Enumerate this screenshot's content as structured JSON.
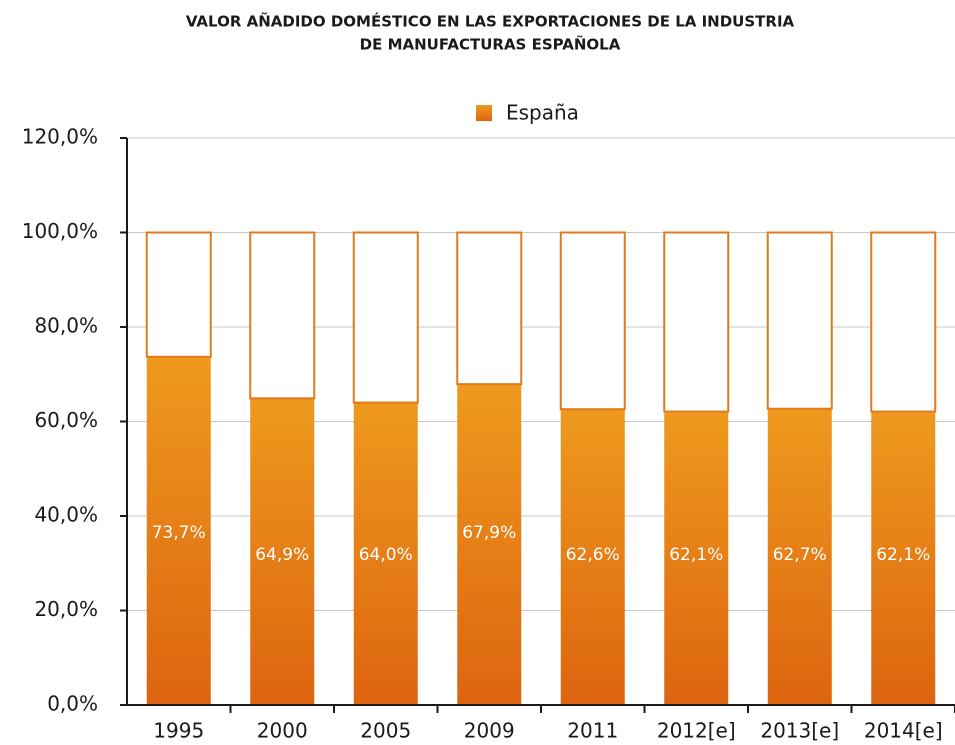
{
  "chart_data": {
    "type": "stacked_bar",
    "title": [
      "VALOR AÑADIDO DOMÉSTICO EN LAS EXPORTACIONES DE LA INDUSTRIA",
      "DE MANUFACTURAS ESPAÑOLA"
    ],
    "categories": [
      "1995",
      "2000",
      "2005",
      "2009",
      "2011",
      "2012[e]",
      "2013[e]",
      "2014[e]"
    ],
    "series": [
      {
        "name": "España",
        "color": "#ee9a1e",
        "values": [
          73.7,
          64.9,
          64.0,
          67.9,
          62.6,
          62.1,
          62.7,
          62.1
        ],
        "value_labels": [
          "73,7%",
          "64,9%",
          "64,0%",
          "67,9%",
          "62,6%",
          "62,1%",
          "62,7%",
          "62,1%"
        ]
      },
      {
        "color": "#ffffff",
        "values": [
          26.3,
          35.1,
          36.0,
          32.1,
          37.4,
          37.9,
          37.3,
          37.9
        ]
      }
    ],
    "outline": "#e07a1f",
    "ylim": [
      0,
      120
    ],
    "yticks": [
      {
        "value": 0,
        "label": "0,0%"
      },
      {
        "value": 20,
        "label": "20,0%"
      },
      {
        "value": 40,
        "label": "40,0%"
      },
      {
        "value": 60,
        "label": "60,0%"
      },
      {
        "value": 80,
        "label": "80,0%"
      },
      {
        "value": 100,
        "label": "100,0%"
      },
      {
        "value": 120,
        "label": "120,0%"
      }
    ],
    "grid": true,
    "legend": "top"
  }
}
